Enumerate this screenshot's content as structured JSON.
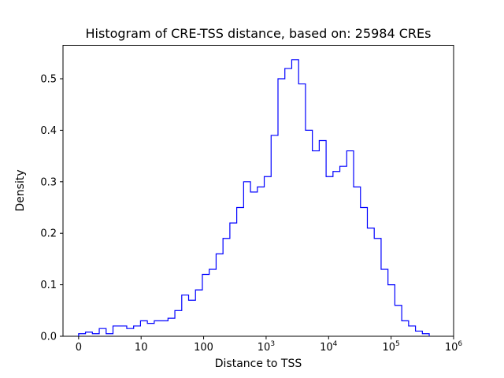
{
  "chart_data": {
    "type": "bar",
    "subtype": "step-histogram",
    "title": "Histogram of CRE-TSS distance, based on: 25984 CREs",
    "xlabel": "Distance to TSS",
    "ylabel": "Density",
    "line_color": "#0000ff",
    "axis_color": "#000000",
    "x_scale": "symlog (u = log10 of distance)",
    "legend": "none",
    "grid": false,
    "xlim_u": [
      -0.25,
      6.0
    ],
    "ylim": [
      0,
      0.565
    ],
    "x_ticks": [
      {
        "label": "0",
        "u": 0
      },
      {
        "label": "10",
        "u": 1
      },
      {
        "label": "100",
        "u": 2
      },
      {
        "label": "10",
        "exp": "3",
        "u": 3
      },
      {
        "label": "10",
        "exp": "4",
        "u": 4
      },
      {
        "label": "10",
        "exp": "5",
        "u": 5
      },
      {
        "label": "10",
        "exp": "6",
        "u": 6
      }
    ],
    "y_ticks": {
      "labels": [
        "0.0",
        "0.1",
        "0.2",
        "0.3",
        "0.4",
        "0.5"
      ],
      "values": [
        0.0,
        0.1,
        0.2,
        0.3,
        0.4,
        0.5
      ]
    },
    "bin_start_u": 0.0,
    "bin_width_u": 0.11,
    "densities": [
      0.005,
      0.008,
      0.005,
      0.015,
      0.005,
      0.02,
      0.02,
      0.015,
      0.02,
      0.03,
      0.025,
      0.03,
      0.03,
      0.035,
      0.05,
      0.08,
      0.07,
      0.09,
      0.12,
      0.13,
      0.16,
      0.19,
      0.22,
      0.25,
      0.3,
      0.28,
      0.29,
      0.31,
      0.39,
      0.5,
      0.52,
      0.537,
      0.49,
      0.4,
      0.36,
      0.38,
      0.31,
      0.32,
      0.33,
      0.36,
      0.29,
      0.25,
      0.21,
      0.19,
      0.13,
      0.1,
      0.06,
      0.03,
      0.02,
      0.01,
      0.005
    ]
  }
}
